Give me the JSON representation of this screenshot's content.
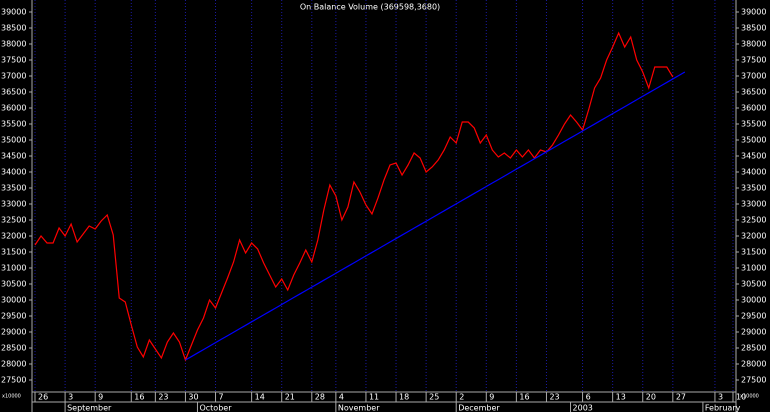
{
  "chart_data": {
    "type": "line",
    "title": "On Balance Volume (369598,3680)",
    "multiplier_label": "x10000",
    "ylim": [
      27125,
      39375
    ],
    "yticks": [
      27500,
      28000,
      28500,
      29000,
      29500,
      30000,
      30500,
      31000,
      31500,
      32000,
      32500,
      33000,
      33500,
      34000,
      34500,
      35000,
      35500,
      36000,
      36500,
      37000,
      37500,
      38000,
      38500,
      39000
    ],
    "grid": true,
    "categories": [
      "26",
      null,
      null,
      null,
      null,
      "3",
      null,
      null,
      null,
      null,
      "9",
      null,
      null,
      null,
      null,
      null,
      "16",
      null,
      null,
      null,
      "23",
      null,
      null,
      null,
      null,
      "30",
      null,
      null,
      null,
      null,
      "7",
      null,
      null,
      null,
      null,
      null,
      "14",
      null,
      null,
      null,
      null,
      "21",
      null,
      null,
      null,
      null,
      "28",
      null,
      null,
      null,
      "4",
      null,
      null,
      null,
      null,
      "11",
      null,
      null,
      null,
      null,
      "18",
      null,
      null,
      null,
      null,
      "25",
      null,
      null,
      null,
      null,
      "2",
      null,
      null,
      null,
      null,
      "9",
      null,
      null,
      null,
      null,
      "16",
      null,
      null,
      null,
      null,
      "23",
      null,
      null,
      null,
      null,
      null,
      "6",
      null,
      null,
      null,
      null,
      "13",
      null,
      null,
      null,
      null,
      "20",
      null,
      null,
      null,
      null,
      "27",
      null,
      null,
      null,
      null,
      null,
      null,
      "3",
      null,
      null,
      "10"
    ],
    "month_labels": [
      null,
      null,
      null,
      null,
      null,
      "September",
      null,
      null,
      null,
      null,
      null,
      null,
      null,
      null,
      null,
      null,
      null,
      null,
      null,
      null,
      null,
      null,
      null,
      null,
      null,
      null,
      null,
      "October",
      null,
      null,
      null,
      null,
      null,
      null,
      null,
      null,
      null,
      null,
      null,
      null,
      null,
      null,
      null,
      null,
      null,
      null,
      null,
      null,
      null,
      null,
      "November",
      null,
      null,
      null,
      null,
      null,
      null,
      null,
      null,
      null,
      null,
      null,
      null,
      null,
      null,
      null,
      null,
      null,
      null,
      null,
      "December",
      null,
      null,
      null,
      null,
      null,
      null,
      null,
      null,
      null,
      null,
      null,
      null,
      null,
      null,
      null,
      null,
      null,
      null,
      "2003",
      null,
      null,
      null,
      null,
      null,
      null,
      null,
      null,
      null,
      null,
      null,
      null,
      null,
      null,
      null,
      null,
      null,
      null,
      null,
      null,
      null,
      "February",
      null,
      null,
      null,
      null,
      null
    ],
    "series": [
      {
        "name": "On Balance Volume",
        "color": "#ff0000",
        "values": [
          31719,
          32000,
          31781,
          31781,
          32250,
          32000,
          32375,
          31812,
          32062,
          32312,
          32219,
          32469,
          32656,
          32031,
          30062,
          29938,
          29219,
          28531,
          28219,
          28750,
          28469,
          28188,
          28688,
          28969,
          28688,
          28125,
          28594,
          29062,
          29438,
          30000,
          29750,
          30219,
          30688,
          31188,
          31875,
          31469,
          31781,
          31594,
          31156,
          30781,
          30406,
          30656,
          30312,
          30781,
          31156,
          31562,
          31188,
          31875,
          32812,
          33594,
          33250,
          32500,
          32906,
          33688,
          33375,
          32969,
          32688,
          33188,
          33750,
          34219,
          34281,
          33906,
          34219,
          34594,
          34438,
          34000,
          34156,
          34375,
          34688,
          35094,
          34906,
          35562,
          35562,
          35375,
          34906,
          35156,
          34688,
          34469,
          34594,
          34438,
          34688,
          34469,
          34688,
          34438,
          34688,
          34625,
          34844,
          35156,
          35500,
          35781,
          35562,
          35312,
          35938,
          36625,
          36938,
          37500,
          37906,
          38344,
          37906,
          38219,
          37500,
          37125,
          36625,
          37281,
          37281,
          37281,
          36969,
          null,
          null,
          null,
          null,
          null,
          null,
          null,
          null,
          null,
          null
        ]
      },
      {
        "name": "Trendline",
        "color": "#0000ff",
        "values": [
          null,
          null,
          null,
          null,
          null,
          null,
          null,
          null,
          null,
          null,
          null,
          null,
          null,
          null,
          null,
          null,
          null,
          null,
          null,
          null,
          null,
          null,
          null,
          null,
          null,
          28125,
          28233,
          28342,
          28450,
          28559,
          28667,
          28776,
          28884,
          28992,
          29101,
          29209,
          29318,
          29426,
          29535,
          29643,
          29751,
          29860,
          29968,
          30077,
          30185,
          30294,
          30402,
          30510,
          30619,
          30727,
          30836,
          30944,
          31053,
          31161,
          31270,
          31378,
          31486,
          31595,
          31703,
          31812,
          31920,
          32029,
          32137,
          32245,
          32354,
          32462,
          32571,
          32679,
          32787,
          32896,
          33004,
          33113,
          33221,
          33330,
          33438,
          33546,
          33655,
          33763,
          33872,
          33980,
          34089,
          34197,
          34305,
          34414,
          34522,
          34631,
          34739,
          34848,
          34956,
          35064,
          35173,
          35281,
          35390,
          35498,
          35607,
          35715,
          35823,
          35932,
          36040,
          36149,
          36257,
          36366,
          36474,
          36582,
          36691,
          36799,
          36908,
          37016,
          37125,
          null,
          null,
          null,
          null,
          null,
          null,
          null,
          null
        ]
      }
    ]
  }
}
